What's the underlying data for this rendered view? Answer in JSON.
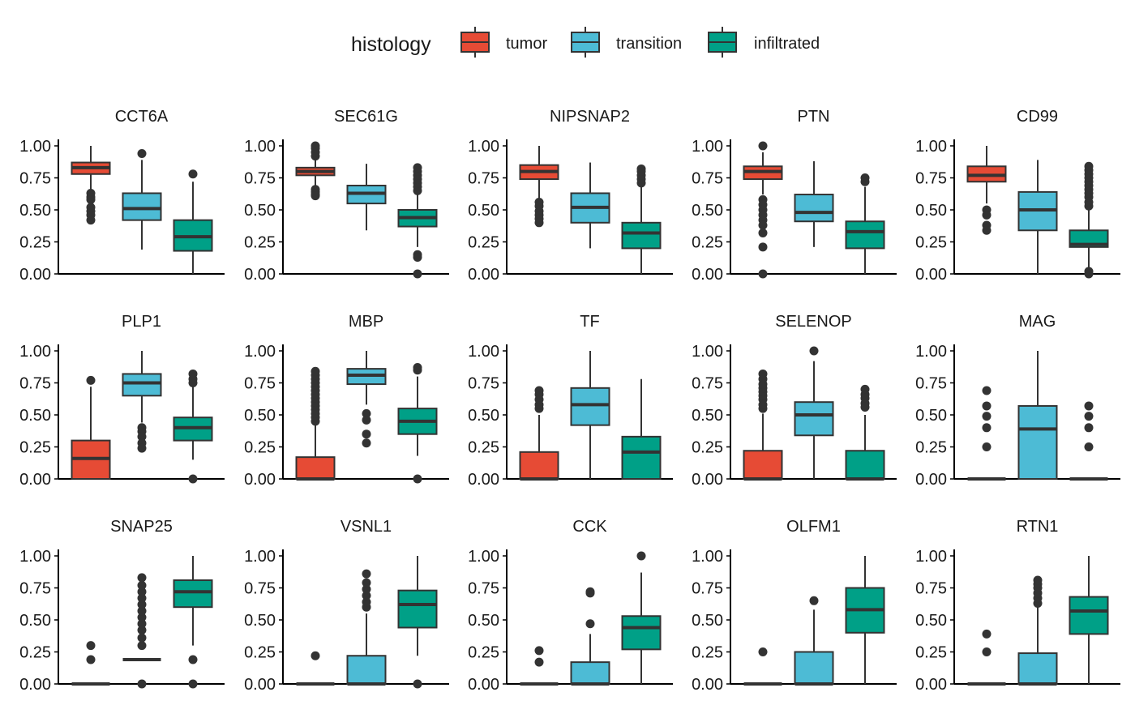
{
  "colors": {
    "tumor": "#E64B35",
    "transition": "#4DBBD5",
    "infiltrated": "#00A087",
    "line": "#333333"
  },
  "legend": {
    "title": "histology",
    "items": [
      {
        "label": "tumor",
        "color": "#E64B35"
      },
      {
        "label": "transition",
        "color": "#4DBBD5"
      },
      {
        "label": "infiltrated",
        "color": "#00A087"
      }
    ]
  },
  "chart_data": {
    "type": "boxplot",
    "ylim": [
      0,
      1
    ],
    "yticks": [
      "0.00",
      "0.25",
      "0.50",
      "0.75",
      "1.00"
    ],
    "groups": [
      "tumor",
      "transition",
      "infiltrated"
    ],
    "facets": [
      {
        "title": "CCT6A",
        "boxes": [
          {
            "q1": 0.78,
            "median": 0.83,
            "q3": 0.87,
            "wlo": 0.66,
            "whi": 1.0,
            "outliers": [
              0.63,
              0.6,
              0.58,
              0.52,
              0.49,
              0.46,
              0.42
            ]
          },
          {
            "q1": 0.42,
            "median": 0.51,
            "q3": 0.63,
            "wlo": 0.19,
            "whi": 0.89,
            "outliers": [
              0.94
            ]
          },
          {
            "q1": 0.18,
            "median": 0.29,
            "q3": 0.42,
            "wlo": 0.0,
            "whi": 0.72,
            "outliers": [
              0.78
            ]
          }
        ]
      },
      {
        "title": "SEC61G",
        "boxes": [
          {
            "q1": 0.77,
            "median": 0.8,
            "q3": 0.83,
            "wlo": 0.68,
            "whi": 0.9,
            "outliers": [
              0.92,
              0.95,
              0.98,
              1.0,
              0.66,
              0.64,
              0.62,
              0.61
            ]
          },
          {
            "q1": 0.55,
            "median": 0.63,
            "q3": 0.69,
            "wlo": 0.34,
            "whi": 0.86,
            "outliers": []
          },
          {
            "q1": 0.37,
            "median": 0.44,
            "q3": 0.5,
            "wlo": 0.21,
            "whi": 0.62,
            "outliers": [
              0.65,
              0.68,
              0.71,
              0.74,
              0.77,
              0.8,
              0.83,
              0.15,
              0.13,
              0.0
            ]
          }
        ]
      },
      {
        "title": "NIPSNAP2",
        "boxes": [
          {
            "q1": 0.74,
            "median": 0.8,
            "q3": 0.85,
            "wlo": 0.58,
            "whi": 1.0,
            "outliers": [
              0.56,
              0.53,
              0.49,
              0.46,
              0.43,
              0.4
            ]
          },
          {
            "q1": 0.4,
            "median": 0.52,
            "q3": 0.63,
            "wlo": 0.2,
            "whi": 0.87,
            "outliers": []
          },
          {
            "q1": 0.2,
            "median": 0.32,
            "q3": 0.4,
            "wlo": 0.0,
            "whi": 0.68,
            "outliers": [
              0.71,
              0.74,
              0.77,
              0.8,
              0.82
            ]
          }
        ]
      },
      {
        "title": "PTN",
        "boxes": [
          {
            "q1": 0.74,
            "median": 0.8,
            "q3": 0.84,
            "wlo": 0.62,
            "whi": 0.95,
            "outliers": [
              1.0,
              0.58,
              0.54,
              0.5,
              0.46,
              0.42,
              0.38,
              0.32,
              0.21,
              0.0
            ]
          },
          {
            "q1": 0.41,
            "median": 0.48,
            "q3": 0.62,
            "wlo": 0.21,
            "whi": 0.88,
            "outliers": []
          },
          {
            "q1": 0.2,
            "median": 0.33,
            "q3": 0.41,
            "wlo": 0.0,
            "whi": 0.68,
            "outliers": [
              0.72,
              0.75
            ]
          }
        ]
      },
      {
        "title": "CD99",
        "boxes": [
          {
            "q1": 0.72,
            "median": 0.77,
            "q3": 0.84,
            "wlo": 0.55,
            "whi": 1.0,
            "outliers": [
              0.5,
              0.46,
              0.38,
              0.34
            ]
          },
          {
            "q1": 0.34,
            "median": 0.5,
            "q3": 0.64,
            "wlo": 0.0,
            "whi": 0.89,
            "outliers": []
          },
          {
            "q1": 0.21,
            "median": 0.23,
            "q3": 0.34,
            "wlo": 0.0,
            "whi": 0.5,
            "outliers": [
              0.53,
              0.56,
              0.6,
              0.63,
              0.66,
              0.69,
              0.72,
              0.75,
              0.78,
              0.81,
              0.84,
              0.02,
              0.0
            ]
          }
        ]
      },
      {
        "title": "PLP1",
        "boxes": [
          {
            "q1": 0.0,
            "median": 0.16,
            "q3": 0.3,
            "wlo": 0.0,
            "whi": 0.72,
            "outliers": [
              0.77
            ]
          },
          {
            "q1": 0.65,
            "median": 0.75,
            "q3": 0.82,
            "wlo": 0.44,
            "whi": 1.0,
            "outliers": [
              0.4,
              0.37,
              0.33,
              0.28,
              0.24
            ]
          },
          {
            "q1": 0.3,
            "median": 0.4,
            "q3": 0.48,
            "wlo": 0.15,
            "whi": 0.72,
            "outliers": [
              0.75,
              0.78,
              0.82,
              0.0
            ]
          }
        ]
      },
      {
        "title": "MBP",
        "boxes": [
          {
            "q1": 0.0,
            "median": 0.0,
            "q3": 0.17,
            "wlo": 0.0,
            "whi": 0.42,
            "outliers": [
              0.45,
              0.48,
              0.51,
              0.54,
              0.57,
              0.6,
              0.63,
              0.66,
              0.69,
              0.72,
              0.75,
              0.78,
              0.81,
              0.84
            ]
          },
          {
            "q1": 0.74,
            "median": 0.81,
            "q3": 0.86,
            "wlo": 0.58,
            "whi": 1.0,
            "outliers": [
              0.51,
              0.46,
              0.35,
              0.28
            ]
          },
          {
            "q1": 0.35,
            "median": 0.45,
            "q3": 0.55,
            "wlo": 0.18,
            "whi": 0.8,
            "outliers": [
              0.85,
              0.87,
              0.0
            ]
          }
        ]
      },
      {
        "title": "TF",
        "boxes": [
          {
            "q1": 0.0,
            "median": 0.0,
            "q3": 0.21,
            "wlo": 0.0,
            "whi": 0.5,
            "outliers": [
              0.55,
              0.58,
              0.62,
              0.66,
              0.69
            ]
          },
          {
            "q1": 0.42,
            "median": 0.58,
            "q3": 0.71,
            "wlo": 0.0,
            "whi": 1.0,
            "outliers": []
          },
          {
            "q1": 0.0,
            "median": 0.21,
            "q3": 0.33,
            "wlo": 0.0,
            "whi": 0.78,
            "outliers": []
          }
        ]
      },
      {
        "title": "SELENOP",
        "boxes": [
          {
            "q1": 0.0,
            "median": 0.0,
            "q3": 0.22,
            "wlo": 0.0,
            "whi": 0.51,
            "outliers": [
              0.55,
              0.58,
              0.62,
              0.65,
              0.68,
              0.71,
              0.74,
              0.78,
              0.82
            ]
          },
          {
            "q1": 0.34,
            "median": 0.5,
            "q3": 0.6,
            "wlo": 0.0,
            "whi": 0.92,
            "outliers": [
              1.0
            ]
          },
          {
            "q1": 0.0,
            "median": 0.0,
            "q3": 0.22,
            "wlo": 0.0,
            "whi": 0.5,
            "outliers": [
              0.56,
              0.59,
              0.63,
              0.66,
              0.7
            ]
          }
        ]
      },
      {
        "title": "MAG",
        "boxes": [
          {
            "q1": 0.0,
            "median": 0.0,
            "q3": 0.0,
            "wlo": 0.0,
            "whi": 0.0,
            "outliers": [
              0.25,
              0.4,
              0.49,
              0.57,
              0.69
            ]
          },
          {
            "q1": 0.0,
            "median": 0.39,
            "q3": 0.57,
            "wlo": 0.0,
            "whi": 1.0,
            "outliers": []
          },
          {
            "q1": 0.0,
            "median": 0.0,
            "q3": 0.0,
            "wlo": 0.0,
            "whi": 0.0,
            "outliers": [
              0.25,
              0.4,
              0.49,
              0.57
            ]
          }
        ]
      },
      {
        "title": "SNAP25",
        "boxes": [
          {
            "q1": 0.0,
            "median": 0.0,
            "q3": 0.0,
            "wlo": 0.0,
            "whi": 0.0,
            "outliers": [
              0.19,
              0.3
            ]
          },
          {
            "q1": 0.19,
            "median": 0.19,
            "q3": 0.19,
            "wlo": 0.19,
            "whi": 0.19,
            "outliers": [
              0.3,
              0.36,
              0.42,
              0.47,
              0.52,
              0.57,
              0.62,
              0.67,
              0.72,
              0.77,
              0.83,
              0.0
            ]
          },
          {
            "q1": 0.6,
            "median": 0.72,
            "q3": 0.81,
            "wlo": 0.3,
            "whi": 1.0,
            "outliers": [
              0.19,
              0.0
            ]
          }
        ]
      },
      {
        "title": "VSNL1",
        "boxes": [
          {
            "q1": 0.0,
            "median": 0.0,
            "q3": 0.0,
            "wlo": 0.0,
            "whi": 0.0,
            "outliers": [
              0.22
            ]
          },
          {
            "q1": 0.0,
            "median": 0.0,
            "q3": 0.22,
            "wlo": 0.0,
            "whi": 0.55,
            "outliers": [
              0.6,
              0.64,
              0.69,
              0.74,
              0.79,
              0.86
            ]
          },
          {
            "q1": 0.44,
            "median": 0.62,
            "q3": 0.73,
            "wlo": 0.22,
            "whi": 1.0,
            "outliers": [
              0.0
            ]
          }
        ]
      },
      {
        "title": "CCK",
        "boxes": [
          {
            "q1": 0.0,
            "median": 0.0,
            "q3": 0.0,
            "wlo": 0.0,
            "whi": 0.0,
            "outliers": [
              0.17,
              0.26
            ]
          },
          {
            "q1": 0.0,
            "median": 0.0,
            "q3": 0.17,
            "wlo": 0.0,
            "whi": 0.39,
            "outliers": [
              0.47,
              0.71,
              0.72
            ]
          },
          {
            "q1": 0.27,
            "median": 0.44,
            "q3": 0.53,
            "wlo": 0.0,
            "whi": 0.87,
            "outliers": [
              1.0
            ]
          }
        ]
      },
      {
        "title": "OLFM1",
        "boxes": [
          {
            "q1": 0.0,
            "median": 0.0,
            "q3": 0.0,
            "wlo": 0.0,
            "whi": 0.0,
            "outliers": [
              0.25
            ]
          },
          {
            "q1": 0.0,
            "median": 0.0,
            "q3": 0.25,
            "wlo": 0.0,
            "whi": 0.58,
            "outliers": [
              0.65
            ]
          },
          {
            "q1": 0.4,
            "median": 0.58,
            "q3": 0.75,
            "wlo": 0.0,
            "whi": 1.0,
            "outliers": []
          }
        ]
      },
      {
        "title": "RTN1",
        "boxes": [
          {
            "q1": 0.0,
            "median": 0.0,
            "q3": 0.0,
            "wlo": 0.0,
            "whi": 0.0,
            "outliers": [
              0.25,
              0.39
            ]
          },
          {
            "q1": 0.0,
            "median": 0.0,
            "q3": 0.24,
            "wlo": 0.0,
            "whi": 0.6,
            "outliers": [
              0.63,
              0.67,
              0.71,
              0.75,
              0.78,
              0.81
            ]
          },
          {
            "q1": 0.39,
            "median": 0.57,
            "q3": 0.68,
            "wlo": 0.0,
            "whi": 1.0,
            "outliers": []
          }
        ]
      }
    ]
  }
}
